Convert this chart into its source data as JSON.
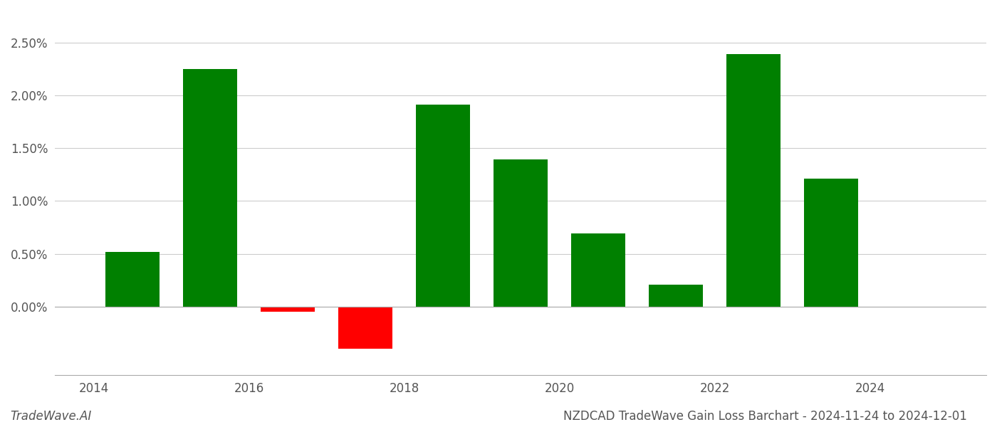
{
  "years": [
    2014,
    2015,
    2016,
    2017,
    2018,
    2019,
    2020,
    2021,
    2022,
    2023
  ],
  "values": [
    0.0052,
    0.0225,
    -0.0005,
    -0.004,
    0.0191,
    0.0139,
    0.0069,
    0.0021,
    0.0239,
    0.0121
  ],
  "colors": [
    "#008000",
    "#008000",
    "#ff0000",
    "#ff0000",
    "#008000",
    "#008000",
    "#008000",
    "#008000",
    "#008000",
    "#008000"
  ],
  "title": "NZDCAD TradeWave Gain Loss Barchart - 2024-11-24 to 2024-12-01",
  "watermark": "TradeWave.AI",
  "ylim_min": -0.0065,
  "ylim_max": 0.028,
  "background_color": "#ffffff",
  "bar_width": 0.7,
  "grid_color": "#cccccc",
  "title_fontsize": 12,
  "tick_fontsize": 12,
  "watermark_fontsize": 12,
  "xtick_positions": [
    2014,
    2016,
    2018,
    2020,
    2022,
    2024
  ],
  "xtick_offset": -0.5,
  "xlim_min": 2013.0,
  "xlim_max": 2025.0
}
